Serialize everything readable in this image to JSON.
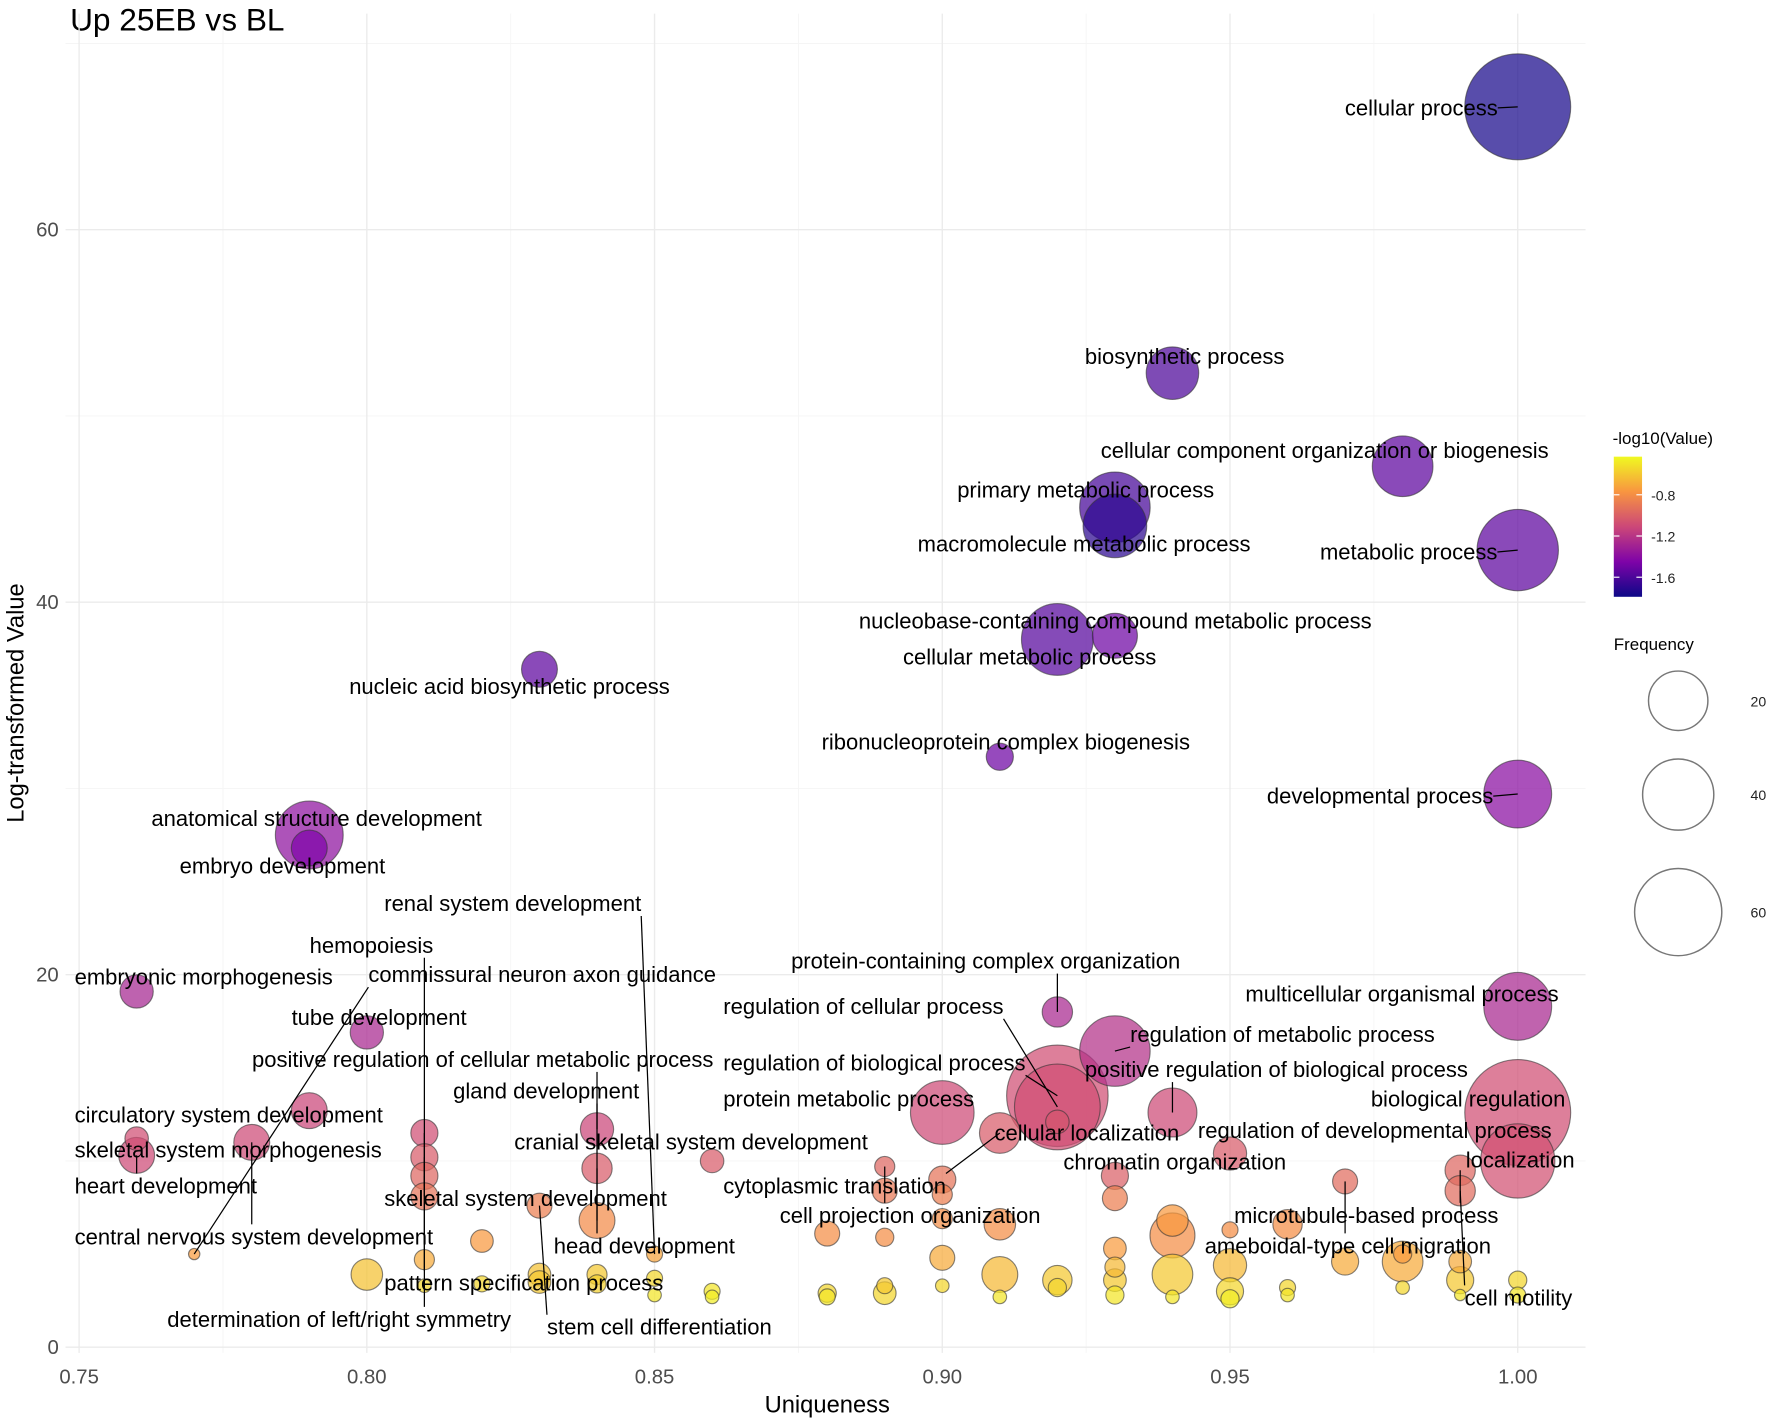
{
  "chart_data": {
    "type": "scatter",
    "title": "Up 25EB vs BL",
    "xlabel": "Uniqueness",
    "ylabel": "Log-transformed Value",
    "xlim": [
      0.7476,
      1.0115
    ],
    "ylim": [
      -0.3,
      71
    ],
    "x_ticks": [
      0.75,
      0.8,
      0.85,
      0.9,
      0.95,
      1.0
    ],
    "x_tick_labels": [
      "0.75",
      "0.80",
      "0.85",
      "0.90",
      "0.95",
      "1.00"
    ],
    "y_ticks": [
      0,
      20,
      40,
      60
    ],
    "y_tick_labels": [
      "0",
      "20",
      "40",
      "60"
    ],
    "grid": true,
    "color_legend": {
      "title": "-log10(Value)",
      "range": [
        -1.79,
        -0.43
      ],
      "ticks": [
        -0.8,
        -1.2,
        -1.6
      ],
      "tick_labels": [
        "-0.8",
        "-1.2",
        "-1.6"
      ],
      "palette": [
        "#0d0887",
        "#7e03a8",
        "#cc4778",
        "#f89540",
        "#f0f921"
      ],
      "placement": "right"
    },
    "size_legend": {
      "title": "Frequency",
      "values": [
        20,
        40,
        60
      ],
      "labels": [
        "20",
        "40",
        "60"
      ],
      "placement": "right"
    },
    "points": [
      {
        "label": "cellular process",
        "x": 1.0,
        "y": 66.6,
        "value": -1.76,
        "frequency": 61
      },
      {
        "label": "biosynthetic process",
        "x": 0.94,
        "y": 52.3,
        "value": -1.6,
        "frequency": 15
      },
      {
        "label": "cellular component organization or biogenesis",
        "x": 0.98,
        "y": 47.3,
        "value": -1.55,
        "frequency": 20
      },
      {
        "label": "primary metabolic process",
        "x": 0.93,
        "y": 45.1,
        "value": -1.62,
        "frequency": 27
      },
      {
        "label": "macromolecule metabolic process",
        "x": 0.93,
        "y": 44.1,
        "value": -1.7,
        "frequency": 22
      },
      {
        "label": "metabolic process",
        "x": 1.0,
        "y": 42.8,
        "value": -1.55,
        "frequency": 36
      },
      {
        "label": "nucleobase-containing compound metabolic process",
        "x": 0.93,
        "y": 38.2,
        "value": -1.5,
        "frequency": 11
      },
      {
        "label": "cellular metabolic process",
        "x": 0.92,
        "y": 38.0,
        "value": -1.57,
        "frequency": 28
      },
      {
        "label": "nucleic acid biosynthetic process",
        "x": 0.83,
        "y": 36.4,
        "value": -1.55,
        "frequency": 7
      },
      {
        "label": "ribonucleoprotein complex biogenesis",
        "x": 0.91,
        "y": 31.7,
        "value": -1.5,
        "frequency": 4
      },
      {
        "label": "developmental process",
        "x": 1.0,
        "y": 29.7,
        "value": -1.4,
        "frequency": 25
      },
      {
        "label": "anatomical structure development",
        "x": 0.79,
        "y": 27.5,
        "value": -1.38,
        "frequency": 25
      },
      {
        "label": "embryo development",
        "x": 0.79,
        "y": 26.8,
        "value": -1.45,
        "frequency": 7
      },
      {
        "label": "embryonic morphogenesis",
        "x": 0.76,
        "y": 19.1,
        "value": -1.28,
        "frequency": 6
      },
      {
        "label": "tube development",
        "x": 0.8,
        "y": 16.9,
        "value": -1.27,
        "frequency": 6
      },
      {
        "label": "multicellular organismal process",
        "x": 1.0,
        "y": 18.3,
        "value": -1.27,
        "frequency": 25
      },
      {
        "label": "protein-containing complex organization",
        "x": 0.92,
        "y": 18.0,
        "value": -1.27,
        "frequency": 5
      },
      {
        "label": "regulation of metabolic process",
        "x": 0.93,
        "y": 15.9,
        "value": -1.22,
        "frequency": 27
      },
      {
        "label": "regulation of biological process",
        "x": 0.92,
        "y": 13.5,
        "value": -1.08,
        "frequency": 56
      },
      {
        "label": "regulation of cellular process",
        "x": 0.92,
        "y": 12.9,
        "value": -1.08,
        "frequency": 40
      },
      {
        "label": "biological regulation",
        "x": 1.0,
        "y": 12.6,
        "value": -1.08,
        "frequency": 61
      },
      {
        "label": "positive regulation of biological process",
        "x": 0.94,
        "y": 12.6,
        "value": -1.1,
        "frequency": 13
      },
      {
        "label": "protein metabolic process",
        "x": 0.9,
        "y": 12.6,
        "value": -1.1,
        "frequency": 22
      },
      {
        "label": "positive regulation of cellular metabolic process",
        "x": 0.84,
        "y": 11.7,
        "value": -1.12,
        "frequency": 6
      },
      {
        "label": "circulatory system development",
        "x": 0.79,
        "y": 12.7,
        "value": -1.12,
        "frequency": 7
      },
      {
        "label": "skeletal system morphogenesis",
        "x": 0.76,
        "y": 11.2,
        "value": -1.08,
        "frequency": 3
      },
      {
        "label": "skeletal system development",
        "x": 0.81,
        "y": 11.5,
        "value": -1.08,
        "frequency": 4
      },
      {
        "label": "cranial skeletal system development",
        "x": 0.86,
        "y": 10.0,
        "value": -1.02,
        "frequency": 3
      },
      {
        "label": "head development",
        "x": 0.84,
        "y": 9.6,
        "value": -1.02,
        "frequency": 5
      },
      {
        "label": "pattern specification process",
        "x": 0.81,
        "y": 10.2,
        "value": -1.02,
        "frequency": 4
      },
      {
        "label": "central nervous system development",
        "x": 0.78,
        "y": 11.0,
        "value": -1.1,
        "frequency": 7
      },
      {
        "label": "cytoplasmic translation",
        "x": 0.91,
        "y": 11.5,
        "value": -1.02,
        "frequency": 9
      },
      {
        "label": "cellular localization",
        "x": 0.92,
        "y": 12.1,
        "value": -1.05,
        "frequency": 3
      },
      {
        "label": "regulation of developmental process",
        "x": 0.95,
        "y": 10.4,
        "value": -1.02,
        "frequency": 6
      },
      {
        "label": "localization",
        "x": 1.0,
        "y": 10.0,
        "value": -1.07,
        "frequency": 30
      },
      {
        "label": "microtubule-based process",
        "x": 0.99,
        "y": 9.5,
        "value": -0.97,
        "frequency": 5
      },
      {
        "label": "cell projection organization",
        "x": 0.89,
        "y": 9.7,
        "value": -0.97,
        "frequency": 2.2
      },
      {
        "label": "chromatin organization",
        "x": 0.93,
        "y": 9.2,
        "value": -1.0,
        "frequency": 4
      },
      {
        "label": "determination of left/right symmetry",
        "x": 0.81,
        "y": 9.2,
        "value": -0.97,
        "frequency": 4
      },
      {
        "label": "ameboidal-type cell migration",
        "x": 0.97,
        "y": 8.9,
        "value": -0.95,
        "frequency": 3.4
      },
      {
        "label": "stem cell differentiation",
        "x": 0.83,
        "y": 7.6,
        "value": -0.87,
        "frequency": 3.4
      },
      {
        "label": "cell motility",
        "x": 0.99,
        "y": 8.4,
        "value": -0.95,
        "frequency": 5
      },
      {
        "label": "hemopoiesis",
        "x": 0.81,
        "y": 8.1,
        "value": -0.92,
        "frequency": 4
      },
      {
        "label": "heart development",
        "x": 0.76,
        "y": 10.3,
        "value": -1.1,
        "frequency": 7
      },
      {
        "label": "gland development",
        "x": 0.84,
        "y": 6.8,
        "value": -0.82,
        "frequency": 7
      },
      {
        "label": "commissural neuron axon guidance",
        "x": 0.77,
        "y": 5.0,
        "value": -0.75,
        "frequency": 0.7
      },
      {
        "label": "renal system development",
        "x": 0.85,
        "y": 5.0,
        "value": -0.72,
        "frequency": 1.4
      },
      {
        "label": "",
        "x": 0.8,
        "y": 3.9,
        "value": -0.62,
        "frequency": 5.4
      },
      {
        "label": "",
        "x": 0.81,
        "y": 3.3,
        "value": -0.55,
        "frequency": 1
      },
      {
        "label": "",
        "x": 0.81,
        "y": 4.7,
        "value": -0.7,
        "frequency": 2.2
      },
      {
        "label": "",
        "x": 0.82,
        "y": 5.7,
        "value": -0.76,
        "frequency": 2.8
      },
      {
        "label": "",
        "x": 0.82,
        "y": 3.4,
        "value": -0.55,
        "frequency": 1.4
      },
      {
        "label": "",
        "x": 0.83,
        "y": 3.9,
        "value": -0.62,
        "frequency": 2.8
      },
      {
        "label": "",
        "x": 0.83,
        "y": 3.5,
        "value": -0.6,
        "frequency": 2.8
      },
      {
        "label": "",
        "x": 0.84,
        "y": 3.9,
        "value": -0.6,
        "frequency": 2.2
      },
      {
        "label": "",
        "x": 0.84,
        "y": 3.4,
        "value": -0.57,
        "frequency": 1.8
      },
      {
        "label": "",
        "x": 0.85,
        "y": 3.7,
        "value": -0.55,
        "frequency": 1.4
      },
      {
        "label": "",
        "x": 0.85,
        "y": 2.8,
        "value": -0.5,
        "frequency": 1
      },
      {
        "label": "",
        "x": 0.86,
        "y": 3.0,
        "value": -0.5,
        "frequency": 1.4
      },
      {
        "label": "",
        "x": 0.86,
        "y": 2.7,
        "value": -0.47,
        "frequency": 1
      },
      {
        "label": "",
        "x": 0.88,
        "y": 6.1,
        "value": -0.8,
        "frequency": 3.4
      },
      {
        "label": "",
        "x": 0.88,
        "y": 2.9,
        "value": -0.55,
        "frequency": 1.8
      },
      {
        "label": "",
        "x": 0.88,
        "y": 2.7,
        "value": -0.5,
        "frequency": 1.4
      },
      {
        "label": "",
        "x": 0.89,
        "y": 5.9,
        "value": -0.8,
        "frequency": 1.8
      },
      {
        "label": "",
        "x": 0.89,
        "y": 2.9,
        "value": -0.55,
        "frequency": 2.8
      },
      {
        "label": "",
        "x": 0.89,
        "y": 3.3,
        "value": -0.6,
        "frequency": 1.4
      },
      {
        "label": "",
        "x": 0.89,
        "y": 8.4,
        "value": -0.9,
        "frequency": 3.4
      },
      {
        "label": "",
        "x": 0.9,
        "y": 9.0,
        "value": -0.92,
        "frequency": 4
      },
      {
        "label": "",
        "x": 0.9,
        "y": 8.2,
        "value": -0.87,
        "frequency": 2.2
      },
      {
        "label": "",
        "x": 0.9,
        "y": 6.9,
        "value": -0.8,
        "frequency": 2.2
      },
      {
        "label": "",
        "x": 0.9,
        "y": 4.8,
        "value": -0.7,
        "frequency": 3.4
      },
      {
        "label": "",
        "x": 0.9,
        "y": 3.3,
        "value": -0.55,
        "frequency": 1
      },
      {
        "label": "",
        "x": 0.91,
        "y": 6.6,
        "value": -0.8,
        "frequency": 5.4
      },
      {
        "label": "",
        "x": 0.91,
        "y": 3.9,
        "value": -0.65,
        "frequency": 7
      },
      {
        "label": "",
        "x": 0.91,
        "y": 2.7,
        "value": -0.5,
        "frequency": 1
      },
      {
        "label": "",
        "x": 0.92,
        "y": 3.6,
        "value": -0.6,
        "frequency": 4.7
      },
      {
        "label": "",
        "x": 0.92,
        "y": 3.2,
        "value": -0.55,
        "frequency": 1.8
      },
      {
        "label": "",
        "x": 0.93,
        "y": 8.0,
        "value": -0.87,
        "frequency": 3.4
      },
      {
        "label": "",
        "x": 0.93,
        "y": 5.3,
        "value": -0.75,
        "frequency": 2.8
      },
      {
        "label": "",
        "x": 0.93,
        "y": 4.3,
        "value": -0.65,
        "frequency": 2.2
      },
      {
        "label": "",
        "x": 0.93,
        "y": 3.6,
        "value": -0.6,
        "frequency": 2.8
      },
      {
        "label": "",
        "x": 0.93,
        "y": 2.8,
        "value": -0.5,
        "frequency": 1.8
      },
      {
        "label": "",
        "x": 0.94,
        "y": 6.8,
        "value": -0.76,
        "frequency": 5.4
      },
      {
        "label": "",
        "x": 0.94,
        "y": 6.0,
        "value": -0.8,
        "frequency": 11
      },
      {
        "label": "",
        "x": 0.94,
        "y": 3.9,
        "value": -0.6,
        "frequency": 9
      },
      {
        "label": "",
        "x": 0.94,
        "y": 2.7,
        "value": -0.5,
        "frequency": 1
      },
      {
        "label": "",
        "x": 0.95,
        "y": 6.3,
        "value": -0.8,
        "frequency": 1.4
      },
      {
        "label": "",
        "x": 0.95,
        "y": 4.4,
        "value": -0.65,
        "frequency": 6
      },
      {
        "label": "",
        "x": 0.95,
        "y": 3.0,
        "value": -0.55,
        "frequency": 4
      },
      {
        "label": "",
        "x": 0.95,
        "y": 2.6,
        "value": -0.47,
        "frequency": 1.8
      },
      {
        "label": "",
        "x": 0.96,
        "y": 6.6,
        "value": -0.8,
        "frequency": 4.7
      },
      {
        "label": "",
        "x": 0.96,
        "y": 3.2,
        "value": -0.55,
        "frequency": 1.4
      },
      {
        "label": "",
        "x": 0.96,
        "y": 2.8,
        "value": -0.5,
        "frequency": 1
      },
      {
        "label": "",
        "x": 0.97,
        "y": 4.6,
        "value": -0.7,
        "frequency": 4
      },
      {
        "label": "",
        "x": 0.98,
        "y": 4.6,
        "value": -0.7,
        "frequency": 9
      },
      {
        "label": "",
        "x": 0.98,
        "y": 5.0,
        "value": -0.75,
        "frequency": 1.8
      },
      {
        "label": "",
        "x": 0.98,
        "y": 3.2,
        "value": -0.55,
        "frequency": 1
      },
      {
        "label": "",
        "x": 0.99,
        "y": 4.6,
        "value": -0.7,
        "frequency": 2.8
      },
      {
        "label": "",
        "x": 0.99,
        "y": 3.6,
        "value": -0.6,
        "frequency": 4
      },
      {
        "label": "",
        "x": 0.99,
        "y": 2.8,
        "value": -0.5,
        "frequency": 0.7
      },
      {
        "label": "",
        "x": 1.0,
        "y": 3.6,
        "value": -0.55,
        "frequency": 1.8
      },
      {
        "label": "",
        "x": 1.0,
        "y": 2.8,
        "value": -0.5,
        "frequency": 1.4
      }
    ]
  }
}
